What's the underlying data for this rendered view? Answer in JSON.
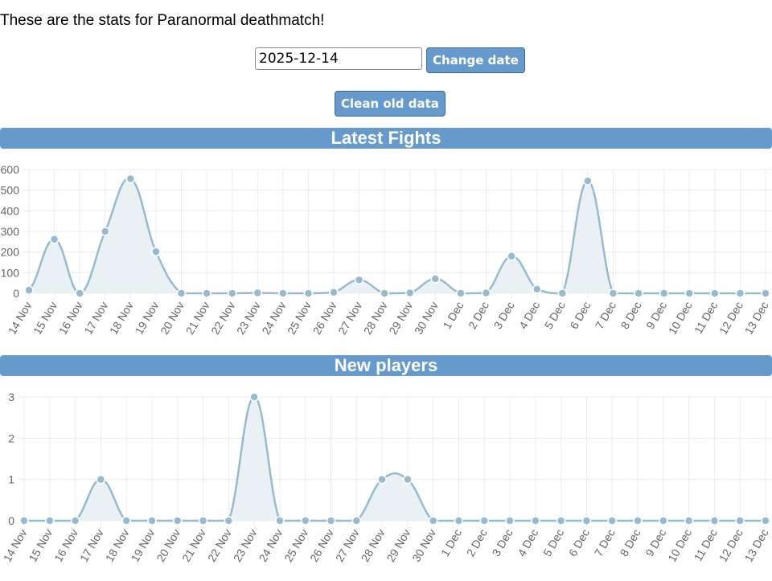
{
  "intro": "These are the stats for Paranormal deathmatch!",
  "date_input": {
    "value": "2025-12-14"
  },
  "buttons": {
    "change_date": "Change date",
    "clean": "Clean old data"
  },
  "colors": {
    "accent": "#6699cc",
    "line": "#97bbcd",
    "fill": "#e8eff3"
  },
  "chart_data": [
    {
      "type": "line",
      "title": "Latest Fights",
      "categories": [
        "14 Nov",
        "15 Nov",
        "16 Nov",
        "17 Nov",
        "18 Nov",
        "19 Nov",
        "20 Nov",
        "21 Nov",
        "22 Nov",
        "23 Nov",
        "24 Nov",
        "25 Nov",
        "26 Nov",
        "27 Nov",
        "28 Nov",
        "29 Nov",
        "30 Nov",
        "1 Dec",
        "2 Dec",
        "3 Dec",
        "4 Dec",
        "5 Dec",
        "6 Dec",
        "7 Dec",
        "8 Dec",
        "9 Dec",
        "10 Dec",
        "11 Dec",
        "12 Dec",
        "13 Dec"
      ],
      "values": [
        15,
        262,
        0,
        300,
        555,
        202,
        0,
        0,
        0,
        2,
        0,
        0,
        5,
        65,
        0,
        2,
        70,
        0,
        2,
        180,
        20,
        0,
        545,
        0,
        0,
        0,
        0,
        0,
        0,
        0
      ],
      "ylim": [
        0,
        600
      ],
      "yticks": [
        "0",
        "100",
        "200",
        "300",
        "400",
        "500",
        "600"
      ],
      "grid": true
    },
    {
      "type": "line",
      "title": "New players",
      "categories": [
        "14 Nov",
        "15 Nov",
        "16 Nov",
        "17 Nov",
        "18 Nov",
        "19 Nov",
        "20 Nov",
        "21 Nov",
        "22 Nov",
        "23 Nov",
        "24 Nov",
        "25 Nov",
        "26 Nov",
        "27 Nov",
        "28 Nov",
        "29 Nov",
        "30 Nov",
        "1 Dec",
        "2 Dec",
        "3 Dec",
        "4 Dec",
        "5 Dec",
        "6 Dec",
        "7 Dec",
        "8 Dec",
        "9 Dec",
        "10 Dec",
        "11 Dec",
        "12 Dec",
        "13 Dec"
      ],
      "values": [
        0,
        0,
        0,
        1,
        0,
        0,
        0,
        0,
        0,
        3,
        0,
        0,
        0,
        0,
        1,
        1,
        0,
        0,
        0,
        0,
        0,
        0,
        0,
        0,
        0,
        0,
        0,
        0,
        0,
        0
      ],
      "ylim": [
        0,
        3
      ],
      "yticks": [
        "0",
        "1",
        "2",
        "3"
      ],
      "grid": true
    }
  ]
}
